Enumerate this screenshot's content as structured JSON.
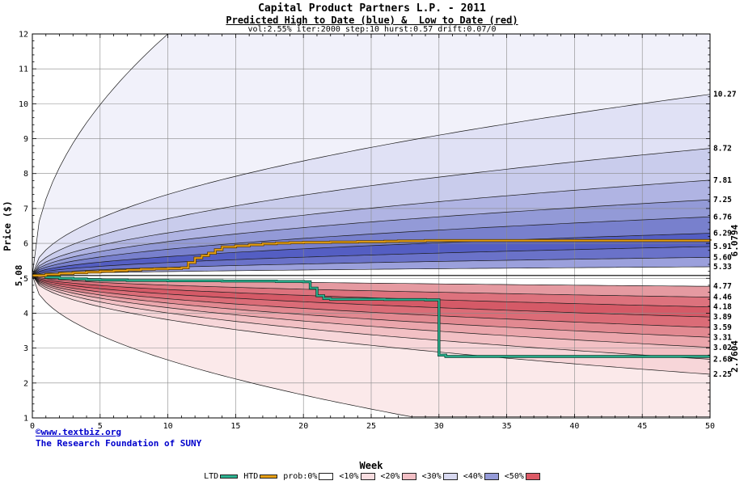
{
  "chart_data": {
    "type": "area",
    "title": "Capital Product Partners L.P. - 2011",
    "subtitle": "Predicted High to Date (blue) &  Low to Date (red)",
    "params_line": "vol:2.55% iter:2000 step:10 hurst:0.57 drift:0.07/0",
    "xlabel": "Week",
    "ylabel": "Price ($)",
    "xlim": [
      0,
      50
    ],
    "ylim": [
      1,
      12
    ],
    "x_ticks": [
      0,
      5,
      10,
      15,
      20,
      25,
      30,
      35,
      40,
      45,
      50
    ],
    "y_ticks": [
      1,
      2,
      3,
      4,
      5,
      6,
      7,
      8,
      9,
      10,
      11,
      12
    ],
    "start_value": 5.08,
    "start_label": "5.08",
    "curve_exponent": 0.5,
    "floor_value": 1.03,
    "extreme_high_exit_week": 10,
    "extreme_low_floor_week": 28,
    "high_band_ends": [
      "10.27",
      "8.72",
      "7.81",
      "7.25",
      "6.76",
      "6.29",
      "5.91",
      "5.60",
      "5.33"
    ],
    "low_band_ends": [
      "4.77",
      "4.46",
      "4.18",
      "3.89",
      "3.59",
      "3.31",
      "3.02",
      "2.68",
      "2.25"
    ],
    "high_band_colors": [
      "#f1f1fa",
      "#e0e1f5",
      "#c9ccec",
      "#b0b4e3",
      "#939ad7",
      "#7880cd",
      "#545ec3",
      "#6a72c9",
      "#9ba0dc"
    ],
    "low_band_colors": [
      "#e59aa1",
      "#dd727d",
      "#d55a67",
      "#db6c77",
      "#e28991",
      "#eba6ac",
      "#f2c0c4",
      "#f7d6d9",
      "#fbe9ea"
    ],
    "series": {
      "htd": {
        "name": "HTD",
        "color": "#e8a014",
        "outline_color": "#5a3c00",
        "end_label": "6.0794",
        "end_label_color": "#b8860b",
        "points": [
          [
            0,
            5.08
          ],
          [
            1,
            5.11
          ],
          [
            2,
            5.14
          ],
          [
            3,
            5.16
          ],
          [
            4,
            5.18
          ],
          [
            5,
            5.2
          ],
          [
            6,
            5.22
          ],
          [
            7,
            5.24
          ],
          [
            8,
            5.26
          ],
          [
            9,
            5.27
          ],
          [
            10,
            5.28
          ],
          [
            11,
            5.3
          ],
          [
            11.5,
            5.45
          ],
          [
            12,
            5.58
          ],
          [
            12.5,
            5.65
          ],
          [
            13,
            5.72
          ],
          [
            13.5,
            5.82
          ],
          [
            14,
            5.9
          ],
          [
            15,
            5.93
          ],
          [
            16,
            5.96
          ],
          [
            17,
            5.99
          ],
          [
            18,
            6.01
          ],
          [
            19,
            6.02
          ],
          [
            20,
            6.03
          ],
          [
            22,
            6.04
          ],
          [
            24,
            6.05
          ],
          [
            26,
            6.06
          ],
          [
            27,
            6.07
          ],
          [
            29,
            6.08
          ],
          [
            50,
            6.0794
          ]
        ]
      },
      "ltd": {
        "name": "LTD",
        "color": "#2cb492",
        "outline_color": "#06402f",
        "end_label": "2.7604",
        "end_label_color": "#1fa356",
        "points": [
          [
            0,
            5.08
          ],
          [
            1,
            5.03
          ],
          [
            2,
            5.0
          ],
          [
            3,
            4.98
          ],
          [
            4,
            4.96
          ],
          [
            5,
            4.95
          ],
          [
            7,
            4.94
          ],
          [
            10,
            4.93
          ],
          [
            14,
            4.92
          ],
          [
            18,
            4.91
          ],
          [
            20,
            4.9
          ],
          [
            20.5,
            4.72
          ],
          [
            21,
            4.5
          ],
          [
            21.5,
            4.42
          ],
          [
            22,
            4.4
          ],
          [
            26,
            4.39
          ],
          [
            29,
            4.38
          ],
          [
            30,
            2.8
          ],
          [
            30.5,
            2.76
          ],
          [
            50,
            2.7604
          ]
        ]
      }
    },
    "legend": {
      "series": [
        {
          "name": "LTD",
          "color": "#2cb492"
        },
        {
          "name": "HTD",
          "color": "#e8a014"
        }
      ],
      "bands": [
        {
          "name": "prob:0%",
          "color": "#ffffff"
        },
        {
          "name": "<10%",
          "color": "#f7dde0"
        },
        {
          "name": "<20%",
          "color": "#f2bfc5"
        },
        {
          "name": "<30%",
          "color": "#d8d9f0"
        },
        {
          "name": "<40%",
          "color": "#959bd8"
        },
        {
          "name": "<50%",
          "color": "#dd5a66"
        }
      ]
    },
    "grid": true,
    "legend_position": "bottom"
  },
  "watermark": {
    "line1": "©www.textbiz.org",
    "line2": "The Research Foundation of SUNY",
    "color": "#0000cc"
  }
}
